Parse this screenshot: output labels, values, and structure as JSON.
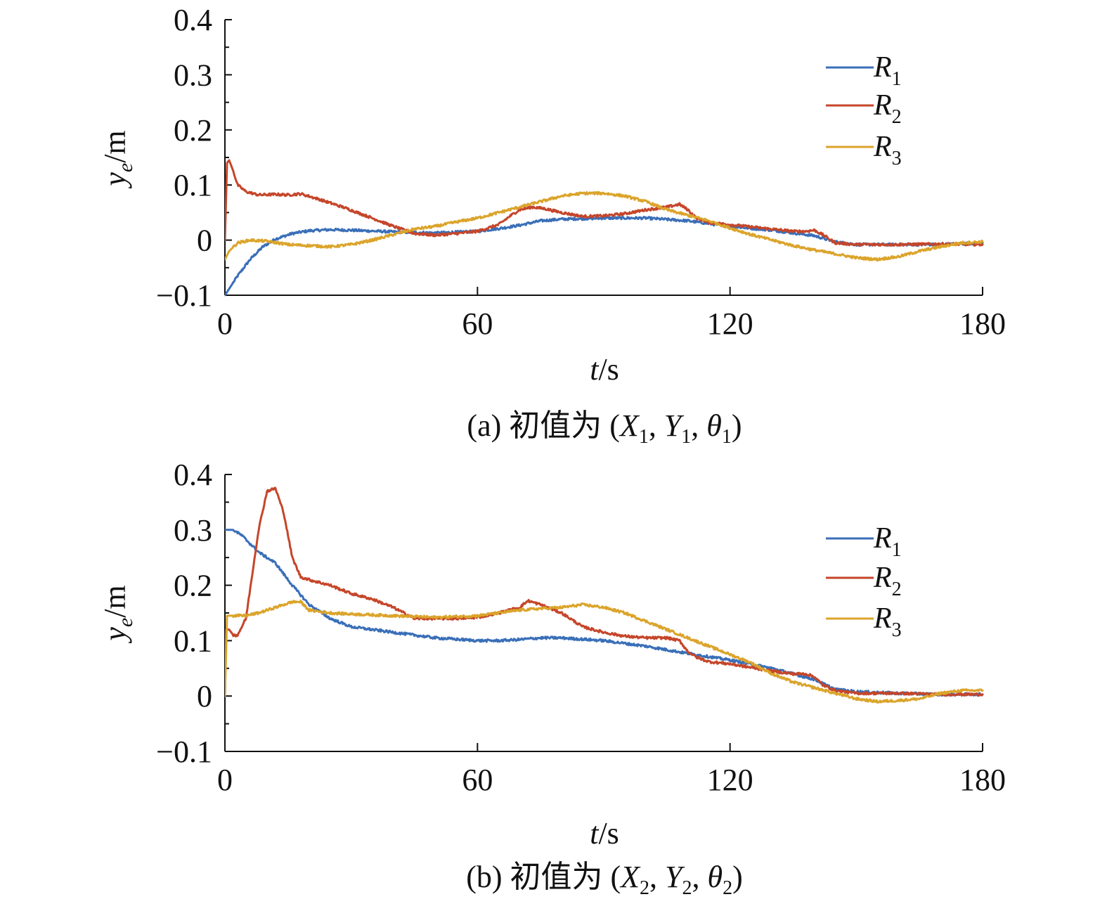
{
  "chart_data": [
    {
      "type": "line",
      "caption": "(a) 初值为 (X1, Y1, θ1)",
      "xlabel": "t/s",
      "ylabel": "ye/m",
      "xlim": [
        0,
        180
      ],
      "ylim": [
        -0.1,
        0.4
      ],
      "xticks": [
        "0",
        "60",
        "120",
        "180"
      ],
      "yticks": [
        "−0.1",
        "0",
        "0.1",
        "0.2",
        "0.3",
        "0.4"
      ],
      "legend_position": "top-right",
      "colors": {
        "R1": "#3A6FB8",
        "R2": "#C5462A",
        "R3": "#DBA42B"
      },
      "series": [
        {
          "name": "R1",
          "x": [
            0,
            3,
            6,
            9,
            12,
            16,
            20,
            25,
            30,
            40,
            50,
            60,
            66,
            70,
            75,
            80,
            90,
            100,
            110,
            120,
            130,
            140,
            145,
            150,
            160,
            170,
            180
          ],
          "y": [
            -0.1,
            -0.065,
            -0.035,
            -0.012,
            0.002,
            0.012,
            0.017,
            0.019,
            0.018,
            0.015,
            0.013,
            0.016,
            0.022,
            0.027,
            0.035,
            0.038,
            0.04,
            0.04,
            0.035,
            0.025,
            0.018,
            0.008,
            -0.003,
            -0.008,
            -0.008,
            -0.008,
            -0.005
          ]
        },
        {
          "name": "R2",
          "x": [
            0,
            0.5,
            1,
            2,
            3,
            5,
            8,
            12,
            15,
            18,
            22,
            28,
            35,
            40,
            45,
            50,
            55,
            60,
            65,
            68,
            70,
            73,
            76,
            80,
            85,
            90,
            95,
            100,
            105,
            108,
            110,
            112,
            115,
            120,
            130,
            135,
            138,
            140,
            142,
            145,
            150,
            160,
            170,
            180
          ],
          "y": [
            0,
            0.14,
            0.145,
            0.125,
            0.1,
            0.088,
            0.082,
            0.083,
            0.082,
            0.084,
            0.075,
            0.06,
            0.04,
            0.025,
            0.012,
            0.009,
            0.012,
            0.016,
            0.028,
            0.045,
            0.055,
            0.06,
            0.057,
            0.05,
            0.043,
            0.044,
            0.048,
            0.055,
            0.06,
            0.065,
            0.055,
            0.04,
            0.032,
            0.028,
            0.02,
            0.016,
            0.016,
            0.018,
            0.01,
            -0.005,
            -0.008,
            -0.008,
            -0.007,
            -0.008
          ]
        },
        {
          "name": "R3",
          "x": [
            0,
            1,
            3,
            6,
            10,
            15,
            20,
            25,
            30,
            35,
            40,
            45,
            50,
            55,
            60,
            65,
            70,
            75,
            80,
            85,
            90,
            95,
            100,
            105,
            110,
            115,
            120,
            125,
            130,
            135,
            140,
            145,
            150,
            155,
            160,
            165,
            170,
            175,
            180
          ],
          "y": [
            -0.035,
            -0.02,
            -0.005,
            0.0,
            -0.002,
            -0.008,
            -0.01,
            -0.012,
            -0.008,
            0.0,
            0.01,
            0.02,
            0.025,
            0.033,
            0.04,
            0.05,
            0.06,
            0.07,
            0.08,
            0.085,
            0.085,
            0.08,
            0.07,
            0.055,
            0.045,
            0.035,
            0.022,
            0.01,
            0.0,
            -0.01,
            -0.018,
            -0.025,
            -0.032,
            -0.035,
            -0.03,
            -0.02,
            -0.012,
            -0.005,
            -0.003
          ]
        }
      ]
    },
    {
      "type": "line",
      "caption": "(b) 初值为 (X2, Y2, θ2)",
      "xlabel": "t/s",
      "ylabel": "ye/m",
      "xlim": [
        0,
        180
      ],
      "ylim": [
        -0.1,
        0.4
      ],
      "xticks": [
        "0",
        "60",
        "120",
        "180"
      ],
      "yticks": [
        "−0.1",
        "0",
        "0.1",
        "0.2",
        "0.3",
        "0.4"
      ],
      "legend_position": "top-right",
      "colors": {
        "R1": "#3A6FB8",
        "R2": "#C5462A",
        "R3": "#DBA42B"
      },
      "series": [
        {
          "name": "R1",
          "x": [
            0,
            1,
            2,
            4,
            8,
            12,
            16,
            20,
            25,
            30,
            40,
            50,
            60,
            65,
            70,
            75,
            80,
            90,
            100,
            110,
            120,
            130,
            140,
            145,
            150,
            160,
            170,
            180
          ],
          "y": [
            0.3,
            0.3,
            0.3,
            0.29,
            0.26,
            0.24,
            0.2,
            0.165,
            0.14,
            0.125,
            0.115,
            0.105,
            0.1,
            0.1,
            0.102,
            0.105,
            0.105,
            0.1,
            0.09,
            0.077,
            0.065,
            0.05,
            0.03,
            0.012,
            0.008,
            0.005,
            0.003,
            0.003
          ]
        },
        {
          "name": "R2",
          "x": [
            0,
            0.3,
            1,
            2,
            3,
            5,
            8,
            10,
            12,
            14,
            16,
            18,
            20,
            25,
            30,
            35,
            40,
            45,
            50,
            55,
            60,
            65,
            70,
            72,
            75,
            80,
            85,
            90,
            95,
            100,
            105,
            108,
            110,
            112,
            115,
            120,
            130,
            135,
            138,
            140,
            142,
            145,
            150,
            160,
            170,
            180
          ],
          "y": [
            0,
            0.12,
            0.12,
            0.11,
            0.11,
            0.14,
            0.3,
            0.37,
            0.375,
            0.33,
            0.25,
            0.215,
            0.21,
            0.2,
            0.185,
            0.175,
            0.16,
            0.14,
            0.14,
            0.14,
            0.142,
            0.15,
            0.16,
            0.172,
            0.165,
            0.15,
            0.125,
            0.115,
            0.108,
            0.105,
            0.105,
            0.1,
            0.08,
            0.07,
            0.062,
            0.058,
            0.045,
            0.04,
            0.04,
            0.035,
            0.02,
            0.01,
            0.005,
            0.005,
            0.003,
            0.003
          ]
        },
        {
          "name": "R3",
          "x": [
            0,
            0.5,
            2,
            5,
            8,
            12,
            16,
            18,
            20,
            25,
            30,
            40,
            50,
            60,
            65,
            70,
            75,
            80,
            85,
            90,
            95,
            100,
            105,
            110,
            115,
            120,
            125,
            130,
            135,
            140,
            145,
            150,
            155,
            160,
            165,
            170,
            175,
            180
          ],
          "y": [
            0,
            0.145,
            0.145,
            0.145,
            0.15,
            0.16,
            0.17,
            0.17,
            0.155,
            0.15,
            0.148,
            0.145,
            0.142,
            0.145,
            0.15,
            0.155,
            0.158,
            0.16,
            0.165,
            0.16,
            0.15,
            0.135,
            0.12,
            0.105,
            0.09,
            0.075,
            0.06,
            0.04,
            0.025,
            0.015,
            0.005,
            -0.005,
            -0.01,
            -0.008,
            -0.005,
            0.005,
            0.01,
            0.01
          ]
        }
      ]
    }
  ]
}
